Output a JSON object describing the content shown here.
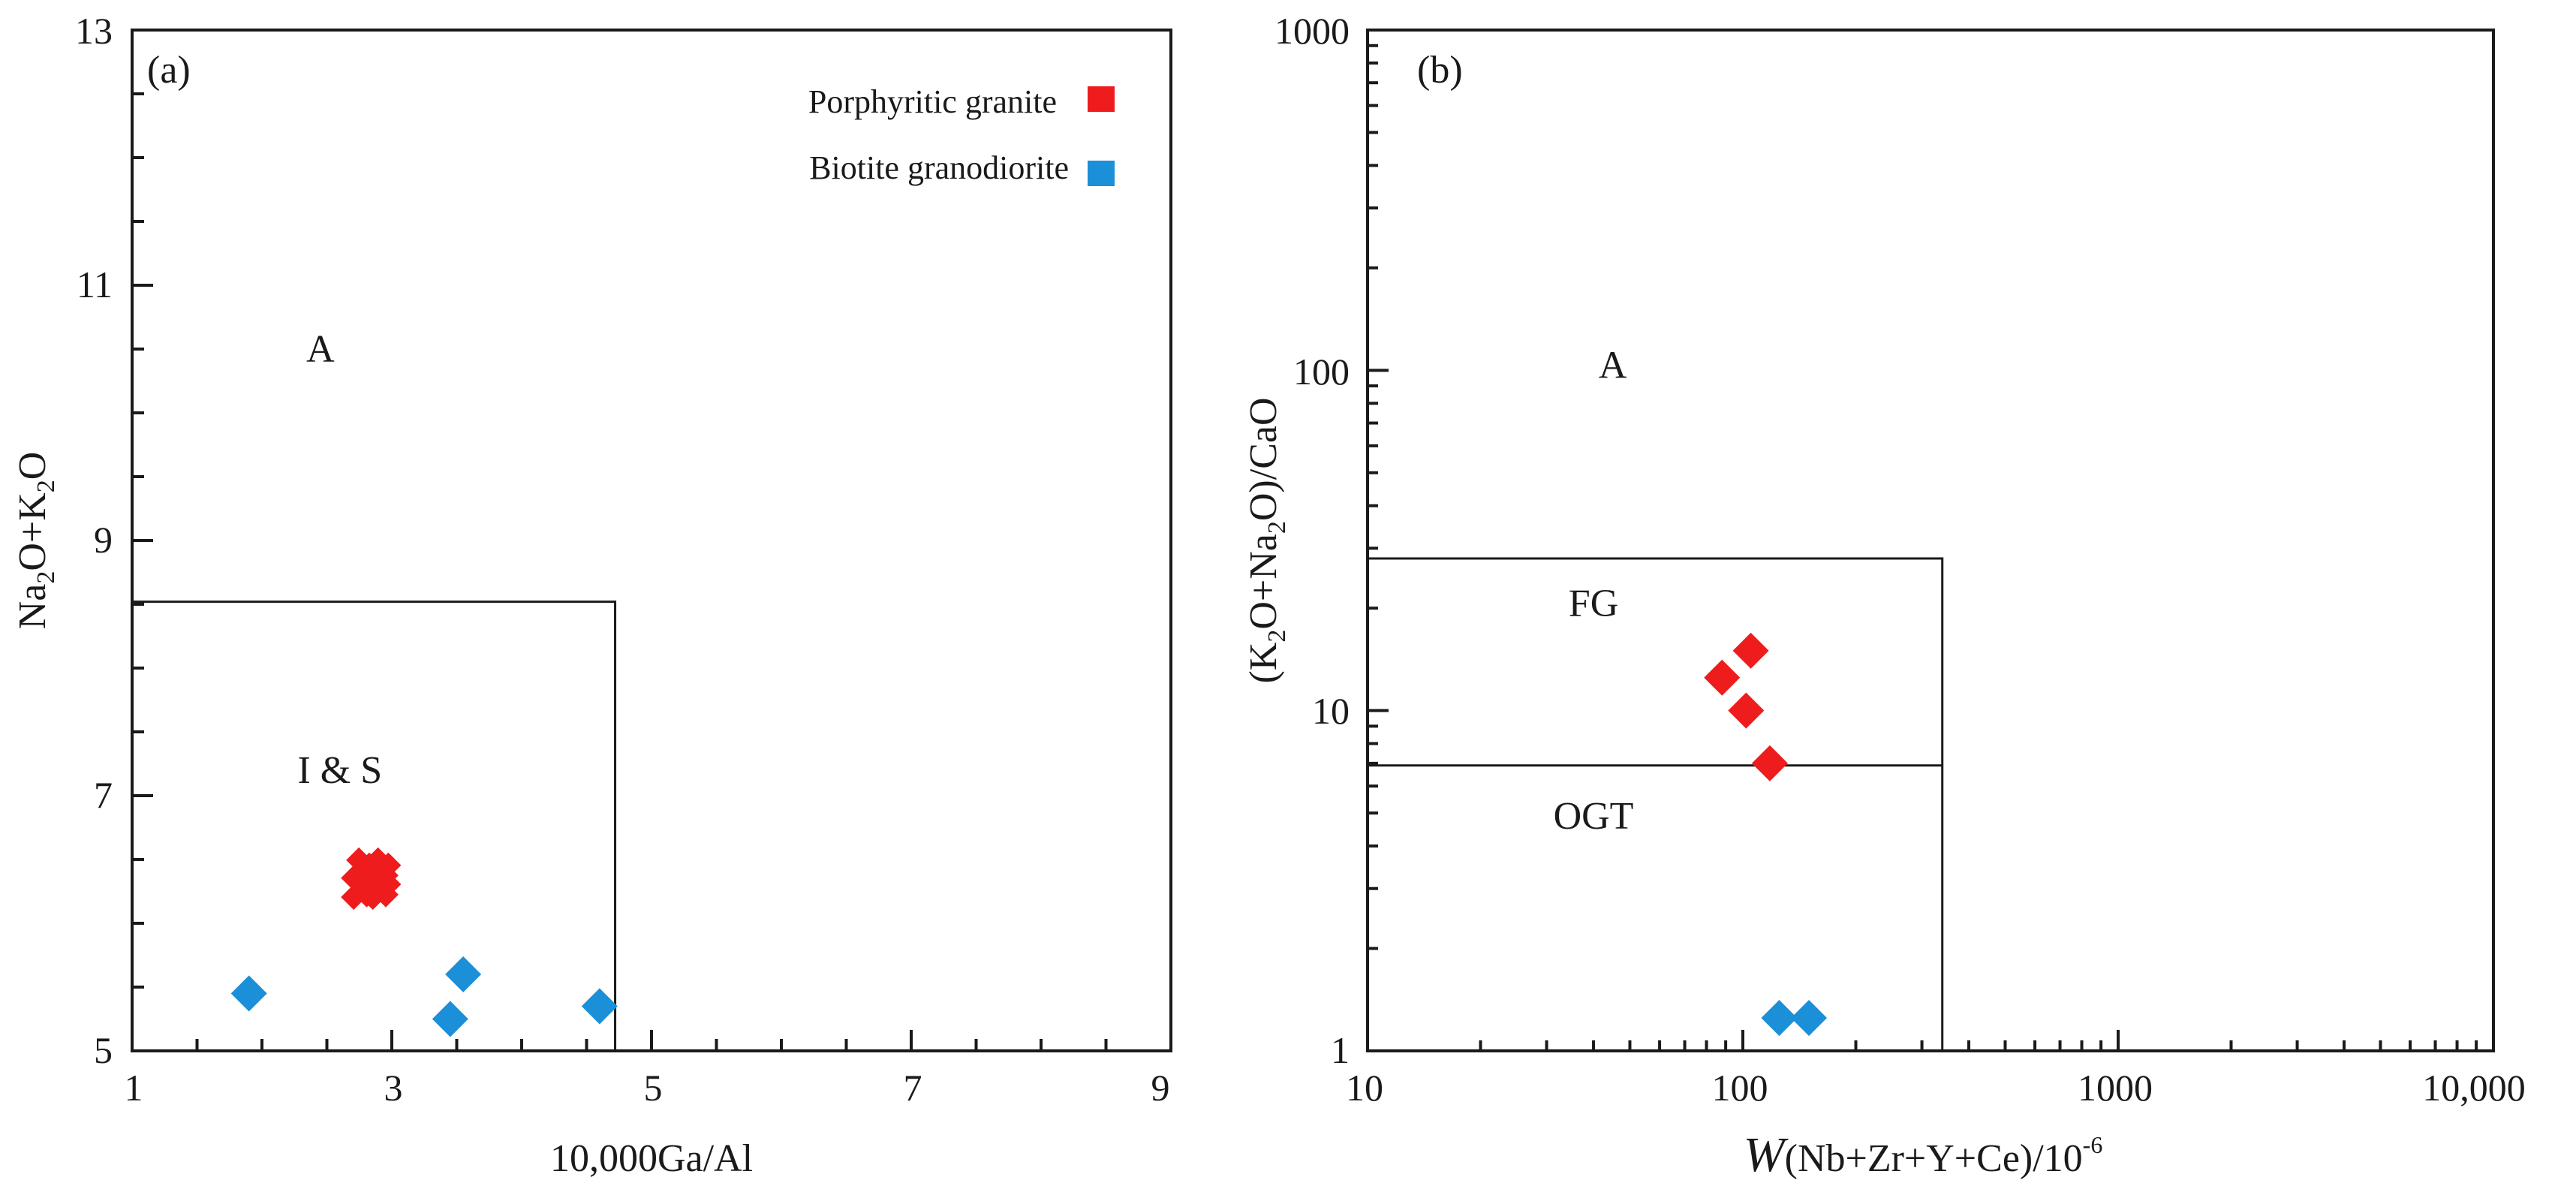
{
  "chart_data": [
    {
      "panel": "(a)",
      "type": "scatter",
      "xlabel": "10,000Ga/Al",
      "ylabel_parts": [
        "Na",
        "2",
        "O+K",
        "2",
        "O"
      ],
      "xlim": [
        1,
        9
      ],
      "ylim": [
        5,
        13
      ],
      "xticks": [
        1,
        3,
        5,
        7,
        9
      ],
      "yticks": [
        5,
        7,
        9,
        11,
        13
      ],
      "xtick_labels": [
        "1",
        "3",
        "5",
        "7",
        "9"
      ],
      "ytick_labels": [
        "5",
        "7",
        "9",
        "11",
        "13"
      ],
      "boundary": [
        [
          1,
          8.52
        ],
        [
          4.72,
          8.52
        ],
        [
          4.72,
          5
        ]
      ],
      "regions": [
        {
          "label": "A",
          "x": 2.45,
          "y": 10.4
        },
        {
          "label": "I & S",
          "x": 2.6,
          "y": 7.1
        }
      ],
      "legend": [
        {
          "name": "Porphyritic granite",
          "color": "#ee1c1c"
        },
        {
          "name": "Biotite granodiorite",
          "color": "#1b8fd8"
        }
      ],
      "series": [
        {
          "name": "Porphyritic granite",
          "color": "#ee1c1c",
          "marker": "cross",
          "points": [
            [
              2.82,
              6.42
            ],
            [
              2.88,
              6.3
            ],
            [
              2.78,
              6.28
            ],
            [
              2.9,
              6.38
            ]
          ]
        },
        {
          "name": "Biotite granodiorite",
          "color": "#1b8fd8",
          "marker": "diamond",
          "points": [
            [
              1.9,
              5.45
            ],
            [
              3.45,
              5.25
            ],
            [
              3.55,
              5.6
            ],
            [
              4.6,
              5.35
            ]
          ]
        }
      ]
    },
    {
      "panel": "(b)",
      "type": "scatter",
      "scale": "log",
      "xlabel_italic": "W",
      "xlabel_rest": "(Nb+Zr+Y+Ce)/10",
      "xlabel_sup": "-6",
      "ylabel_parts": [
        "(K",
        "2",
        "O+Na",
        "2",
        "O)/CaO"
      ],
      "xlim": [
        10,
        10000
      ],
      "ylim": [
        1,
        1000
      ],
      "xticks": [
        10,
        100,
        1000,
        10000
      ],
      "yticks": [
        1,
        10,
        100,
        1000
      ],
      "xtick_labels": [
        "10",
        "100",
        "1000",
        "10,000"
      ],
      "ytick_labels": [
        "1",
        "10",
        "100",
        "1000"
      ],
      "boundaries": [
        [
          [
            10,
            28
          ],
          [
            340,
            28
          ],
          [
            340,
            1
          ]
        ],
        [
          [
            10,
            6.9
          ],
          [
            340,
            6.9
          ]
        ]
      ],
      "regions": [
        {
          "label": "A",
          "x": 45,
          "y": 95
        },
        {
          "label": "FG",
          "x": 40,
          "y": 19
        },
        {
          "label": "OGT",
          "x": 40,
          "y": 4.5
        }
      ],
      "series": [
        {
          "name": "Porphyritic granite",
          "color": "#ee1c1c",
          "marker": "diamond",
          "points": [
            [
              105,
              15
            ],
            [
              88,
              12.5
            ],
            [
              102,
              10
            ],
            [
              118,
              7
            ]
          ]
        },
        {
          "name": "Biotite granodiorite",
          "color": "#1b8fd8",
          "marker": "diamond",
          "points": [
            [
              125,
              1.25
            ],
            [
              150,
              1.25
            ]
          ]
        }
      ]
    }
  ]
}
